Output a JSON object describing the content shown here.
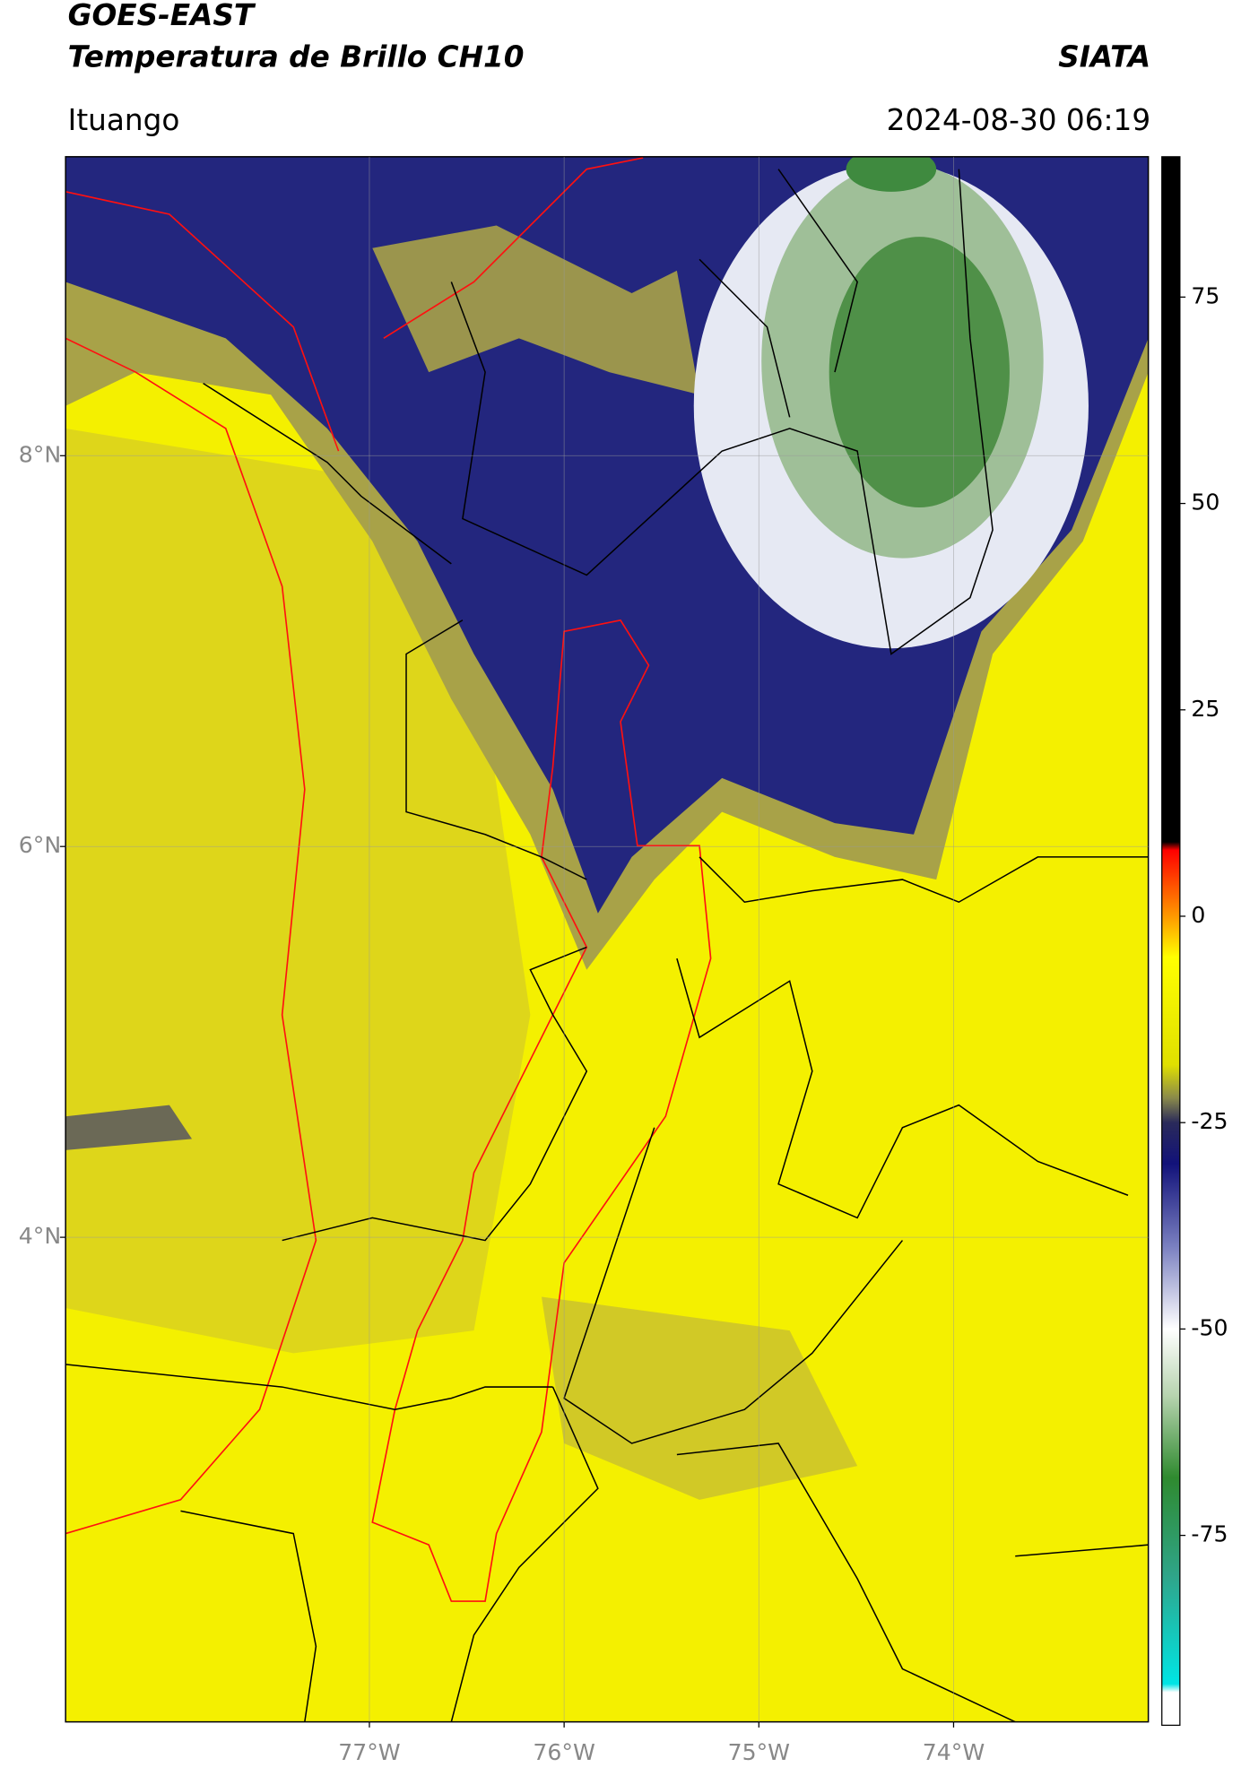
{
  "header": {
    "title": "GOES-EAST",
    "subtitle": "Temperatura de Brillo CH10",
    "source": "SIATA",
    "location": "Ituango",
    "datetime": "2024-08-30 06:19"
  },
  "map": {
    "xlim": [
      -78.56,
      -73.0
    ],
    "ylim": [
      1.52,
      9.53
    ],
    "lon_ticks": [
      {
        "value": -77,
        "label": "77°W"
      },
      {
        "value": -76,
        "label": "76°W"
      },
      {
        "value": -75,
        "label": "75°W"
      },
      {
        "value": -74,
        "label": "74°W"
      }
    ],
    "lat_ticks": [
      {
        "value": 8,
        "label": "8°N"
      },
      {
        "value": 6,
        "label": "6°N"
      },
      {
        "value": 4,
        "label": "4°N"
      }
    ],
    "grid": true
  },
  "colorbar": {
    "lim": [
      -98,
      92
    ],
    "ticks": [
      75,
      50,
      25,
      0,
      -25,
      -50,
      -75
    ],
    "stops": [
      {
        "value": -98,
        "color": "#ffffff"
      },
      {
        "value": -94,
        "color": "#ffffff"
      },
      {
        "value": -93,
        "color": "#00e5e5"
      },
      {
        "value": -80,
        "color": "#2fa58a"
      },
      {
        "value": -68,
        "color": "#2f8a2f"
      },
      {
        "value": -58,
        "color": "#b8d4b0"
      },
      {
        "value": -50,
        "color": "#ffffff"
      },
      {
        "value": -40,
        "color": "#7a80c0"
      },
      {
        "value": -30,
        "color": "#12127a"
      },
      {
        "value": -25,
        "color": "#2a2a5a"
      },
      {
        "value": -22,
        "color": "#8a8a4a"
      },
      {
        "value": -18,
        "color": "#e0e000"
      },
      {
        "value": -5,
        "color": "#ffff00"
      },
      {
        "value": 0,
        "color": "#ff9900"
      },
      {
        "value": 8,
        "color": "#ff0000"
      },
      {
        "value": 9,
        "color": "#000000"
      },
      {
        "value": 92,
        "color": "#000000"
      }
    ]
  }
}
